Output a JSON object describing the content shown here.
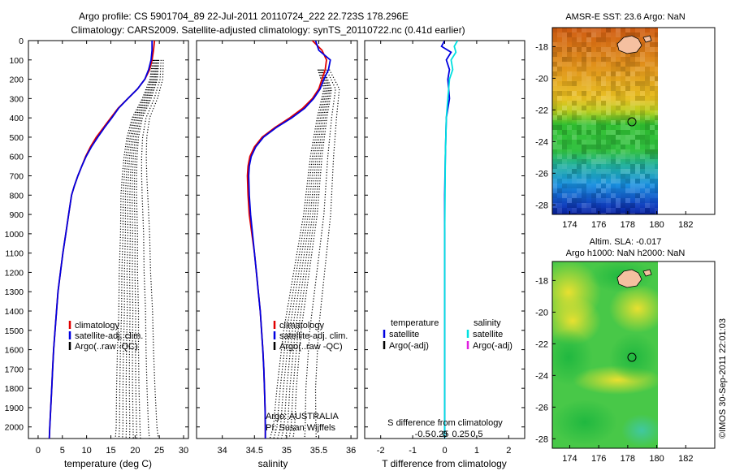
{
  "header": {
    "line1": "Argo profile: CS 5901704_89 22-Jul-2011 20110724_222 22.723S 178.296E",
    "line2": "Climatology: CARS2009. Satellite-adjusted climatology: synTS_20110722.nc (0.41d earlier)"
  },
  "side_label": "©IMOS 30-Sep-2011 22:01:03",
  "colors": {
    "climatology": "#e00000",
    "satellite": "#0000e0",
    "argo": "#000000",
    "sat_salinity": "#00e0e0",
    "argo_salinity": "#e020e0"
  },
  "depth_axis": {
    "ticks": [
      0,
      100,
      200,
      300,
      400,
      500,
      600,
      700,
      800,
      900,
      1000,
      1100,
      1200,
      1300,
      1400,
      1500,
      1600,
      1700,
      1800,
      1900,
      2000
    ],
    "range": [
      0,
      2060
    ]
  },
  "chart_data": [
    {
      "type": "line",
      "id": "temperature",
      "xlabel": "temperature (deg C)",
      "xlim": [
        -2,
        31
      ],
      "xticks": [
        0,
        5,
        10,
        15,
        20,
        25,
        30
      ],
      "ylim": [
        0,
        2060
      ],
      "legend": [
        "climatology",
        "satellite-adj. clim.",
        "Argo(..raw -QC)"
      ],
      "series": [
        {
          "name": "climatology",
          "style": "solid",
          "color": "#e00000",
          "points": [
            [
              24.0,
              0
            ],
            [
              23.8,
              50
            ],
            [
              23.5,
              100
            ],
            [
              23.0,
              150
            ],
            [
              22.0,
              200
            ],
            [
              20.5,
              250
            ],
            [
              18.5,
              300
            ],
            [
              16.5,
              350
            ],
            [
              15.0,
              400
            ],
            [
              13.5,
              450
            ],
            [
              12.0,
              500
            ],
            [
              10.8,
              550
            ],
            [
              9.8,
              600
            ],
            [
              9.0,
              650
            ],
            [
              8.2,
              700
            ],
            [
              7.5,
              750
            ],
            [
              6.9,
              800
            ],
            [
              6.3,
              900
            ],
            [
              5.7,
              1000
            ],
            [
              5.1,
              1100
            ],
            [
              4.6,
              1200
            ],
            [
              4.1,
              1300
            ],
            [
              3.8,
              1400
            ],
            [
              3.5,
              1500
            ],
            [
              3.2,
              1600
            ],
            [
              3.0,
              1700
            ],
            [
              2.8,
              1800
            ],
            [
              2.6,
              1900
            ],
            [
              2.4,
              2000
            ],
            [
              2.3,
              2060
            ]
          ]
        },
        {
          "name": "satellite-adj. clim.",
          "style": "solid",
          "color": "#0000e0",
          "points": [
            [
              23.5,
              0
            ],
            [
              23.5,
              50
            ],
            [
              23.3,
              100
            ],
            [
              22.8,
              150
            ],
            [
              22.0,
              200
            ],
            [
              20.5,
              250
            ],
            [
              18.5,
              300
            ],
            [
              16.6,
              350
            ],
            [
              15.2,
              400
            ],
            [
              13.7,
              450
            ],
            [
              12.3,
              500
            ],
            [
              11.0,
              550
            ],
            [
              9.9,
              600
            ],
            [
              9.0,
              650
            ],
            [
              8.2,
              700
            ],
            [
              7.5,
              750
            ],
            [
              6.9,
              800
            ],
            [
              6.3,
              900
            ],
            [
              5.7,
              1000
            ],
            [
              5.1,
              1100
            ],
            [
              4.6,
              1200
            ],
            [
              4.1,
              1300
            ],
            [
              3.8,
              1400
            ],
            [
              3.5,
              1500
            ],
            [
              3.2,
              1600
            ],
            [
              3.0,
              1700
            ],
            [
              2.8,
              1800
            ],
            [
              2.6,
              1900
            ],
            [
              2.4,
              2000
            ],
            [
              2.3,
              2060
            ]
          ]
        },
        {
          "name": "Argo(..raw -QC)",
          "style": "dotted",
          "color": "#000000",
          "points": [
            [
              24.0,
              100
            ],
            [
              23.5,
              200
            ],
            [
              22.0,
              300
            ],
            [
              20.0,
              400
            ],
            [
              19.0,
              500
            ],
            [
              18.5,
              600
            ],
            [
              18.2,
              700
            ],
            [
              18.0,
              800
            ],
            [
              18.0,
              1000
            ],
            [
              17.8,
              1200
            ],
            [
              17.8,
              1400
            ],
            [
              17.6,
              1600
            ],
            [
              17.5,
              1800
            ],
            [
              17.5,
              2000
            ],
            [
              17.4,
              2060
            ]
          ]
        }
      ]
    },
    {
      "type": "line",
      "id": "salinity",
      "xlabel": "salinity",
      "xlim": [
        33.6,
        36.1
      ],
      "xticks": [
        34,
        34.5,
        35,
        35.5,
        36
      ],
      "ylim": [
        0,
        2060
      ],
      "legend": [
        "climatology",
        "satellite-adj. clim.",
        "Argo(..raw -QC)"
      ],
      "annotation": [
        "Argo: AUSTRALIA",
        "PI: Susan Wijffels"
      ],
      "series": [
        {
          "name": "climatology",
          "style": "solid",
          "color": "#e00000",
          "points": [
            [
              35.4,
              0
            ],
            [
              35.55,
              50
            ],
            [
              35.62,
              100
            ],
            [
              35.6,
              150
            ],
            [
              35.55,
              200
            ],
            [
              35.5,
              250
            ],
            [
              35.4,
              300
            ],
            [
              35.25,
              350
            ],
            [
              35.05,
              400
            ],
            [
              34.82,
              450
            ],
            [
              34.62,
              500
            ],
            [
              34.5,
              550
            ],
            [
              34.43,
              600
            ],
            [
              34.4,
              650
            ],
            [
              34.39,
              700
            ],
            [
              34.4,
              800
            ],
            [
              34.42,
              900
            ],
            [
              34.46,
              1000
            ],
            [
              34.5,
              1100
            ],
            [
              34.53,
              1200
            ],
            [
              34.56,
              1300
            ],
            [
              34.59,
              1400
            ],
            [
              34.61,
              1500
            ],
            [
              34.63,
              1600
            ],
            [
              34.645,
              1700
            ],
            [
              34.655,
              1800
            ],
            [
              34.665,
              1900
            ],
            [
              34.67,
              2000
            ],
            [
              34.67,
              2060
            ]
          ]
        },
        {
          "name": "satellite-adj. clim.",
          "style": "solid",
          "color": "#0000e0",
          "points": [
            [
              35.45,
              0
            ],
            [
              35.5,
              50
            ],
            [
              35.68,
              100
            ],
            [
              35.65,
              150
            ],
            [
              35.58,
              200
            ],
            [
              35.52,
              250
            ],
            [
              35.42,
              300
            ],
            [
              35.28,
              350
            ],
            [
              35.08,
              400
            ],
            [
              34.84,
              450
            ],
            [
              34.64,
              500
            ],
            [
              34.52,
              550
            ],
            [
              34.45,
              600
            ],
            [
              34.42,
              650
            ],
            [
              34.41,
              700
            ],
            [
              34.42,
              800
            ],
            [
              34.44,
              900
            ],
            [
              34.47,
              1000
            ],
            [
              34.5,
              1100
            ],
            [
              34.53,
              1200
            ],
            [
              34.56,
              1300
            ],
            [
              34.59,
              1400
            ],
            [
              34.61,
              1500
            ],
            [
              34.63,
              1600
            ],
            [
              34.645,
              1700
            ],
            [
              34.655,
              1800
            ],
            [
              34.665,
              1900
            ],
            [
              34.67,
              2000
            ],
            [
              34.67,
              2060
            ]
          ]
        },
        {
          "name": "Argo(..raw -QC)",
          "style": "dotted",
          "color": "#000000",
          "points": [
            [
              35.5,
              150
            ],
            [
              35.6,
              250
            ],
            [
              35.5,
              400
            ],
            [
              35.4,
              600
            ],
            [
              35.3,
              900
            ],
            [
              35.15,
              1200
            ],
            [
              35.0,
              1500
            ],
            [
              34.9,
              1800
            ],
            [
              34.85,
              2000
            ],
            [
              34.8,
              2060
            ]
          ]
        }
      ]
    },
    {
      "type": "line",
      "id": "difference",
      "xlabel_top": "S difference from climatology",
      "xlabel": "T difference from climatology",
      "xlim": [
        -2.5,
        2.5
      ],
      "xticks": [
        -2,
        -1,
        0,
        1,
        2
      ],
      "top_ticks": [
        "-0.5",
        "-0.25",
        "0",
        "0.25",
        "0.5"
      ],
      "ylim": [
        0,
        2060
      ],
      "legend": {
        "temperature": [
          "temperature",
          "satellite",
          "Argo(-adj)"
        ],
        "salinity": [
          "salinity",
          "satellite",
          "Argo(-adj)"
        ]
      },
      "series": [
        {
          "name": "temperature satellite",
          "style": "solid",
          "color": "#0000e0",
          "points": [
            [
              0,
              0
            ],
            [
              -0.1,
              30
            ],
            [
              0.2,
              60
            ],
            [
              0.05,
              100
            ],
            [
              0.15,
              150
            ],
            [
              0.1,
              200
            ],
            [
              0.15,
              300
            ],
            [
              0.05,
              400
            ],
            [
              0.02,
              600
            ],
            [
              0,
              800
            ],
            [
              0,
              1000
            ],
            [
              0,
              2060
            ]
          ]
        },
        {
          "name": "salinity satellite",
          "style": "solid",
          "color": "#00e0e0",
          "points": [
            [
              0.4,
              0
            ],
            [
              0.3,
              30
            ],
            [
              0.35,
              60
            ],
            [
              0.2,
              100
            ],
            [
              0.25,
              150
            ],
            [
              0.15,
              200
            ],
            [
              0.1,
              300
            ],
            [
              0.05,
              400
            ],
            [
              0.02,
              600
            ],
            [
              0.01,
              800
            ],
            [
              0,
              1000
            ],
            [
              0,
              2060
            ]
          ]
        }
      ]
    },
    {
      "type": "heatmap",
      "id": "sst_map",
      "title": "AMSR-E SST: 23.6 Argo: NaN",
      "xlim": [
        172.8,
        184
      ],
      "ylim": [
        -28.6,
        -16.8
      ],
      "xticks": [
        174,
        176,
        178,
        180,
        182
      ],
      "yticks": [
        -18,
        -20,
        -22,
        -24,
        -26,
        -28
      ],
      "argo_position": [
        178.296,
        -22.723
      ]
    },
    {
      "type": "heatmap",
      "id": "sla_map",
      "title_line1": "Altim. SLA: -0.017",
      "title_line2": "Argo h1000: NaN h2000: NaN",
      "xlim": [
        172.8,
        184
      ],
      "ylim": [
        -28.6,
        -16.8
      ],
      "xticks": [
        174,
        176,
        178,
        180,
        182
      ],
      "yticks": [
        -18,
        -20,
        -22,
        -24,
        -26,
        -28
      ],
      "argo_position": [
        178.296,
        -22.723
      ]
    }
  ]
}
